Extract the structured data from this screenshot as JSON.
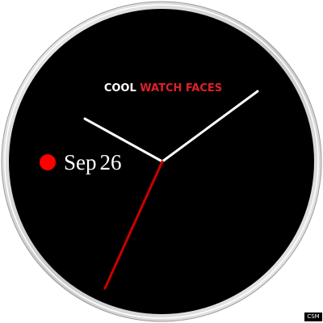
{
  "brand": {
    "part1": "COOL",
    "part2": "WATCH FACES"
  },
  "date": {
    "month": "Sep",
    "day": "26"
  },
  "corner_badge": "CSM",
  "colors": {
    "face": "#000000",
    "bezel": "#d8d8d8",
    "hand_primary": "#ffffff",
    "hand_seconds": "#cc0000",
    "accent": "#e0202a",
    "date_dot": "#ff0000"
  }
}
